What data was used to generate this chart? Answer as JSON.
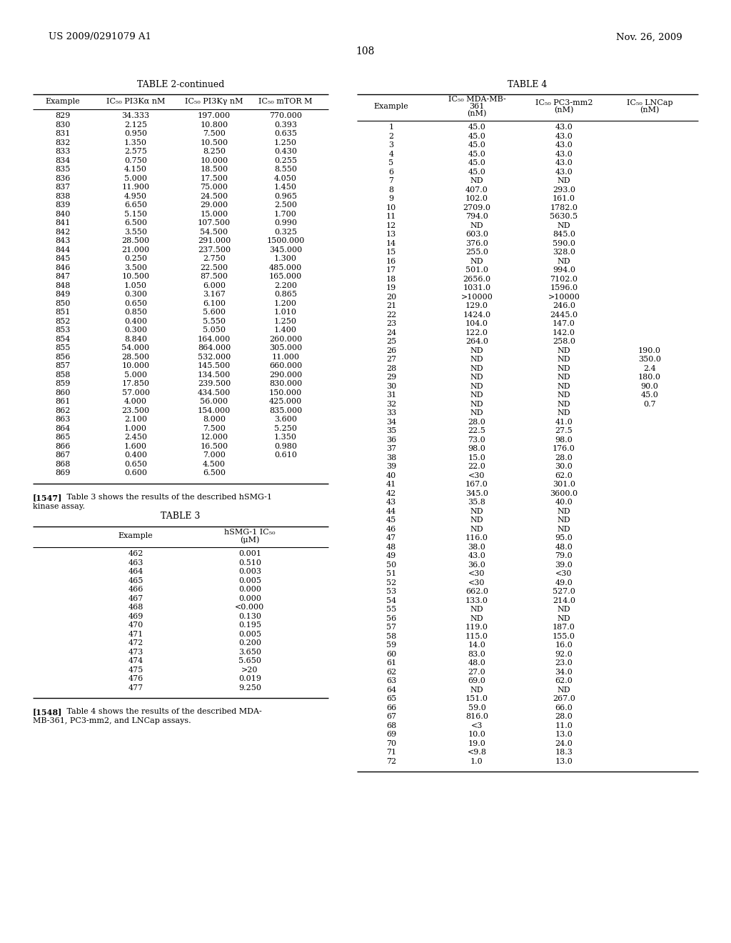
{
  "header_left": "US 2009/0291079 A1",
  "header_right": "Nov. 26, 2009",
  "page_number": "108",
  "table2_title": "TABLE 2-continued",
  "table2_data": [
    [
      "829",
      "34.333",
      "197.000",
      "770.000"
    ],
    [
      "830",
      "2.125",
      "10.800",
      "0.393"
    ],
    [
      "831",
      "0.950",
      "7.500",
      "0.635"
    ],
    [
      "832",
      "1.350",
      "10.500",
      "1.250"
    ],
    [
      "833",
      "2.575",
      "8.250",
      "0.430"
    ],
    [
      "834",
      "0.750",
      "10.000",
      "0.255"
    ],
    [
      "835",
      "4.150",
      "18.500",
      "8.550"
    ],
    [
      "836",
      "5.000",
      "17.500",
      "4.050"
    ],
    [
      "837",
      "11.900",
      "75.000",
      "1.450"
    ],
    [
      "838",
      "4.950",
      "24.500",
      "0.965"
    ],
    [
      "839",
      "6.650",
      "29.000",
      "2.500"
    ],
    [
      "840",
      "5.150",
      "15.000",
      "1.700"
    ],
    [
      "841",
      "6.500",
      "107.500",
      "0.990"
    ],
    [
      "842",
      "3.550",
      "54.500",
      "0.325"
    ],
    [
      "843",
      "28.500",
      "291.000",
      "1500.000"
    ],
    [
      "844",
      "21.000",
      "237.500",
      "345.000"
    ],
    [
      "845",
      "0.250",
      "2.750",
      "1.300"
    ],
    [
      "846",
      "3.500",
      "22.500",
      "485.000"
    ],
    [
      "847",
      "10.500",
      "87.500",
      "165.000"
    ],
    [
      "848",
      "1.050",
      "6.000",
      "2.200"
    ],
    [
      "849",
      "0.300",
      "3.167",
      "0.865"
    ],
    [
      "850",
      "0.650",
      "6.100",
      "1.200"
    ],
    [
      "851",
      "0.850",
      "5.600",
      "1.010"
    ],
    [
      "852",
      "0.400",
      "5.550",
      "1.250"
    ],
    [
      "853",
      "0.300",
      "5.050",
      "1.400"
    ],
    [
      "854",
      "8.840",
      "164.000",
      "260.000"
    ],
    [
      "855",
      "54.000",
      "864.000",
      "305.000"
    ],
    [
      "856",
      "28.500",
      "532.000",
      "11.000"
    ],
    [
      "857",
      "10.000",
      "145.500",
      "660.000"
    ],
    [
      "858",
      "5.000",
      "134.500",
      "290.000"
    ],
    [
      "859",
      "17.850",
      "239.500",
      "830.000"
    ],
    [
      "860",
      "57.000",
      "434.500",
      "150.000"
    ],
    [
      "861",
      "4.000",
      "56.000",
      "425.000"
    ],
    [
      "862",
      "23.500",
      "154.000",
      "835.000"
    ],
    [
      "863",
      "2.100",
      "8.000",
      "3.600"
    ],
    [
      "864",
      "1.000",
      "7.500",
      "5.250"
    ],
    [
      "865",
      "2.450",
      "12.000",
      "1.350"
    ],
    [
      "866",
      "1.600",
      "16.500",
      "0.980"
    ],
    [
      "867",
      "0.400",
      "7.000",
      "0.610"
    ],
    [
      "868",
      "0.650",
      "4.500",
      ""
    ],
    [
      "869",
      "0.600",
      "6.500",
      ""
    ]
  ],
  "para1547_bold": "[1547]",
  "para1547_text": "   Table 3 shows the results of the described hSMG-1\nkinase assay.",
  "table3_title": "TABLE 3",
  "table3_data": [
    [
      "462",
      "0.001"
    ],
    [
      "463",
      "0.510"
    ],
    [
      "464",
      "0.003"
    ],
    [
      "465",
      "0.005"
    ],
    [
      "466",
      "0.000"
    ],
    [
      "467",
      "0.000"
    ],
    [
      "468",
      "<0.000"
    ],
    [
      "469",
      "0.130"
    ],
    [
      "470",
      "0.195"
    ],
    [
      "471",
      "0.005"
    ],
    [
      "472",
      "0.200"
    ],
    [
      "473",
      "3.650"
    ],
    [
      "474",
      "5.650"
    ],
    [
      "475",
      ">20"
    ],
    [
      "476",
      "0.019"
    ],
    [
      "477",
      "9.250"
    ]
  ],
  "para1548_bold": "[1548]",
  "para1548_text": "   Table 4 shows the results of the described MDA-\nMB-361, PC3-mm2, and LNCap assays.",
  "table4_title": "TABLE 4",
  "table4_data": [
    [
      "1",
      "45.0",
      "43.0",
      ""
    ],
    [
      "2",
      "45.0",
      "43.0",
      ""
    ],
    [
      "3",
      "45.0",
      "43.0",
      ""
    ],
    [
      "4",
      "45.0",
      "43.0",
      ""
    ],
    [
      "5",
      "45.0",
      "43.0",
      ""
    ],
    [
      "6",
      "45.0",
      "43.0",
      ""
    ],
    [
      "7",
      "ND",
      "ND",
      ""
    ],
    [
      "8",
      "407.0",
      "293.0",
      ""
    ],
    [
      "9",
      "102.0",
      "161.0",
      ""
    ],
    [
      "10",
      "2709.0",
      "1782.0",
      ""
    ],
    [
      "11",
      "794.0",
      "5630.5",
      ""
    ],
    [
      "12",
      "ND",
      "ND",
      ""
    ],
    [
      "13",
      "603.0",
      "845.0",
      ""
    ],
    [
      "14",
      "376.0",
      "590.0",
      ""
    ],
    [
      "15",
      "255.0",
      "328.0",
      ""
    ],
    [
      "16",
      "ND",
      "ND",
      ""
    ],
    [
      "17",
      "501.0",
      "994.0",
      ""
    ],
    [
      "18",
      "2656.0",
      "7102.0",
      ""
    ],
    [
      "19",
      "1031.0",
      "1596.0",
      ""
    ],
    [
      "20",
      ">10000",
      ">10000",
      ""
    ],
    [
      "21",
      "129.0",
      "246.0",
      ""
    ],
    [
      "22",
      "1424.0",
      "2445.0",
      ""
    ],
    [
      "23",
      "104.0",
      "147.0",
      ""
    ],
    [
      "24",
      "122.0",
      "142.0",
      ""
    ],
    [
      "25",
      "264.0",
      "258.0",
      ""
    ],
    [
      "26",
      "ND",
      "ND",
      "190.0"
    ],
    [
      "27",
      "ND",
      "ND",
      "350.0"
    ],
    [
      "28",
      "ND",
      "ND",
      "2.4"
    ],
    [
      "29",
      "ND",
      "ND",
      "180.0"
    ],
    [
      "30",
      "ND",
      "ND",
      "90.0"
    ],
    [
      "31",
      "ND",
      "ND",
      "45.0"
    ],
    [
      "32",
      "ND",
      "ND",
      "0.7"
    ],
    [
      "33",
      "ND",
      "ND",
      ""
    ],
    [
      "34",
      "28.0",
      "41.0",
      ""
    ],
    [
      "35",
      "22.5",
      "27.5",
      ""
    ],
    [
      "36",
      "73.0",
      "98.0",
      ""
    ],
    [
      "37",
      "98.0",
      "176.0",
      ""
    ],
    [
      "38",
      "15.0",
      "28.0",
      ""
    ],
    [
      "39",
      "22.0",
      "30.0",
      ""
    ],
    [
      "40",
      "<30",
      "62.0",
      ""
    ],
    [
      "41",
      "167.0",
      "301.0",
      ""
    ],
    [
      "42",
      "345.0",
      "3600.0",
      ""
    ],
    [
      "43",
      "35.8",
      "40.0",
      ""
    ],
    [
      "44",
      "ND",
      "ND",
      ""
    ],
    [
      "45",
      "ND",
      "ND",
      ""
    ],
    [
      "46",
      "ND",
      "ND",
      ""
    ],
    [
      "47",
      "116.0",
      "95.0",
      ""
    ],
    [
      "48",
      "38.0",
      "48.0",
      ""
    ],
    [
      "49",
      "43.0",
      "79.0",
      ""
    ],
    [
      "50",
      "36.0",
      "39.0",
      ""
    ],
    [
      "51",
      "<30",
      "<30",
      ""
    ],
    [
      "52",
      "<30",
      "49.0",
      ""
    ],
    [
      "53",
      "662.0",
      "527.0",
      ""
    ],
    [
      "54",
      "133.0",
      "214.0",
      ""
    ],
    [
      "55",
      "ND",
      "ND",
      ""
    ],
    [
      "56",
      "ND",
      "ND",
      ""
    ],
    [
      "57",
      "119.0",
      "187.0",
      ""
    ],
    [
      "58",
      "115.0",
      "155.0",
      ""
    ],
    [
      "59",
      "14.0",
      "16.0",
      ""
    ],
    [
      "60",
      "83.0",
      "92.0",
      ""
    ],
    [
      "61",
      "48.0",
      "23.0",
      ""
    ],
    [
      "62",
      "27.0",
      "34.0",
      ""
    ],
    [
      "63",
      "69.0",
      "62.0",
      ""
    ],
    [
      "64",
      "ND",
      "ND",
      ""
    ],
    [
      "65",
      "151.0",
      "267.0",
      ""
    ],
    [
      "66",
      "59.0",
      "66.0",
      ""
    ],
    [
      "67",
      "816.0",
      "28.0",
      ""
    ],
    [
      "68",
      "<3",
      "11.0",
      ""
    ],
    [
      "69",
      "10.0",
      "13.0",
      ""
    ],
    [
      "70",
      "19.0",
      "24.0",
      ""
    ],
    [
      "71",
      "<9.8",
      "18.3",
      ""
    ],
    [
      "72",
      "1.0",
      "13.0",
      ""
    ]
  ]
}
